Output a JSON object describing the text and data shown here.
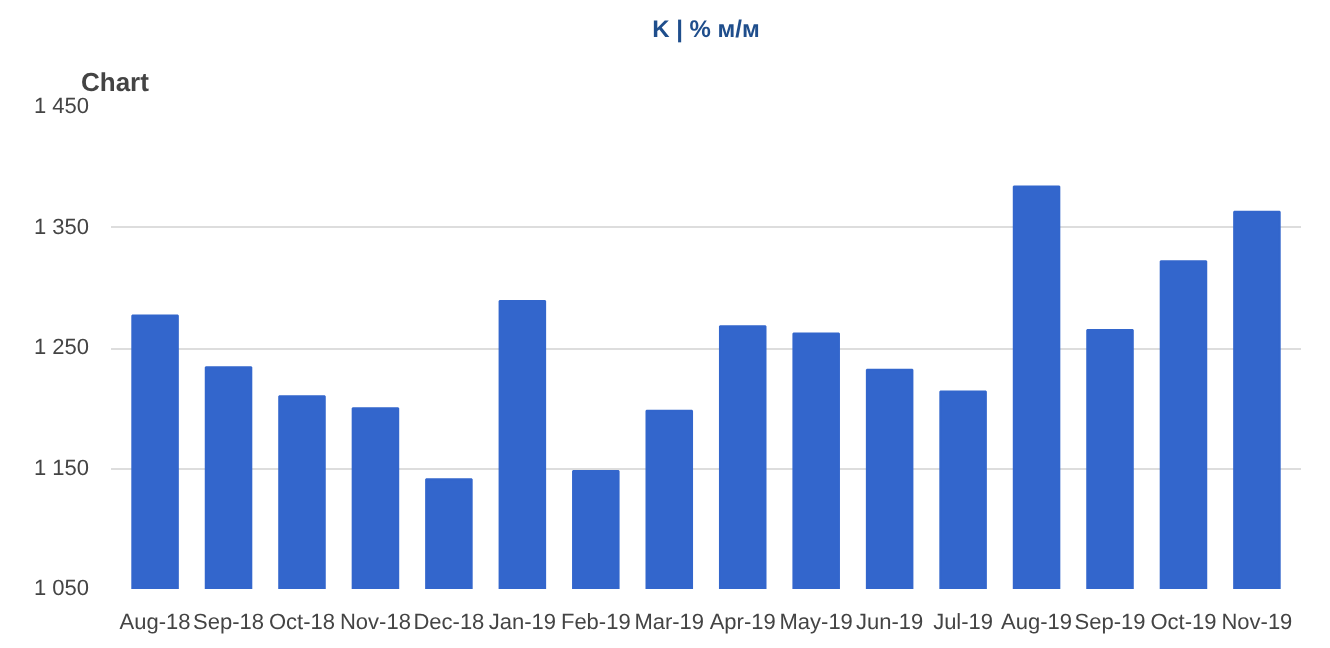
{
  "chart_data": {
    "type": "bar",
    "title": "Chart",
    "annotations": [
      "K | % м/м"
    ],
    "categories": [
      "Aug-18",
      "Sep-18",
      "Oct-18",
      "Nov-18",
      "Dec-18",
      "Jan-19",
      "Feb-19",
      "Mar-19",
      "Apr-19",
      "May-19",
      "Jun-19",
      "Jul-19",
      "Aug-19",
      "Sep-19",
      "Oct-19",
      "Nov-19"
    ],
    "values": [
      1277,
      1234,
      1210,
      1200,
      1141,
      1289,
      1148,
      1198,
      1268,
      1262,
      1232,
      1214,
      1384,
      1265,
      1322,
      1363
    ],
    "color": "#3366cc",
    "ylim": [
      1050,
      1450
    ],
    "yticks": [
      {
        "value": 1050,
        "label": "1 050"
      },
      {
        "value": 1150,
        "label": "1 150"
      },
      {
        "value": 1250,
        "label": "1 250"
      },
      {
        "value": 1350,
        "label": "1 350"
      },
      {
        "value": 1450,
        "label": "1 450"
      }
    ],
    "grid": "y"
  }
}
